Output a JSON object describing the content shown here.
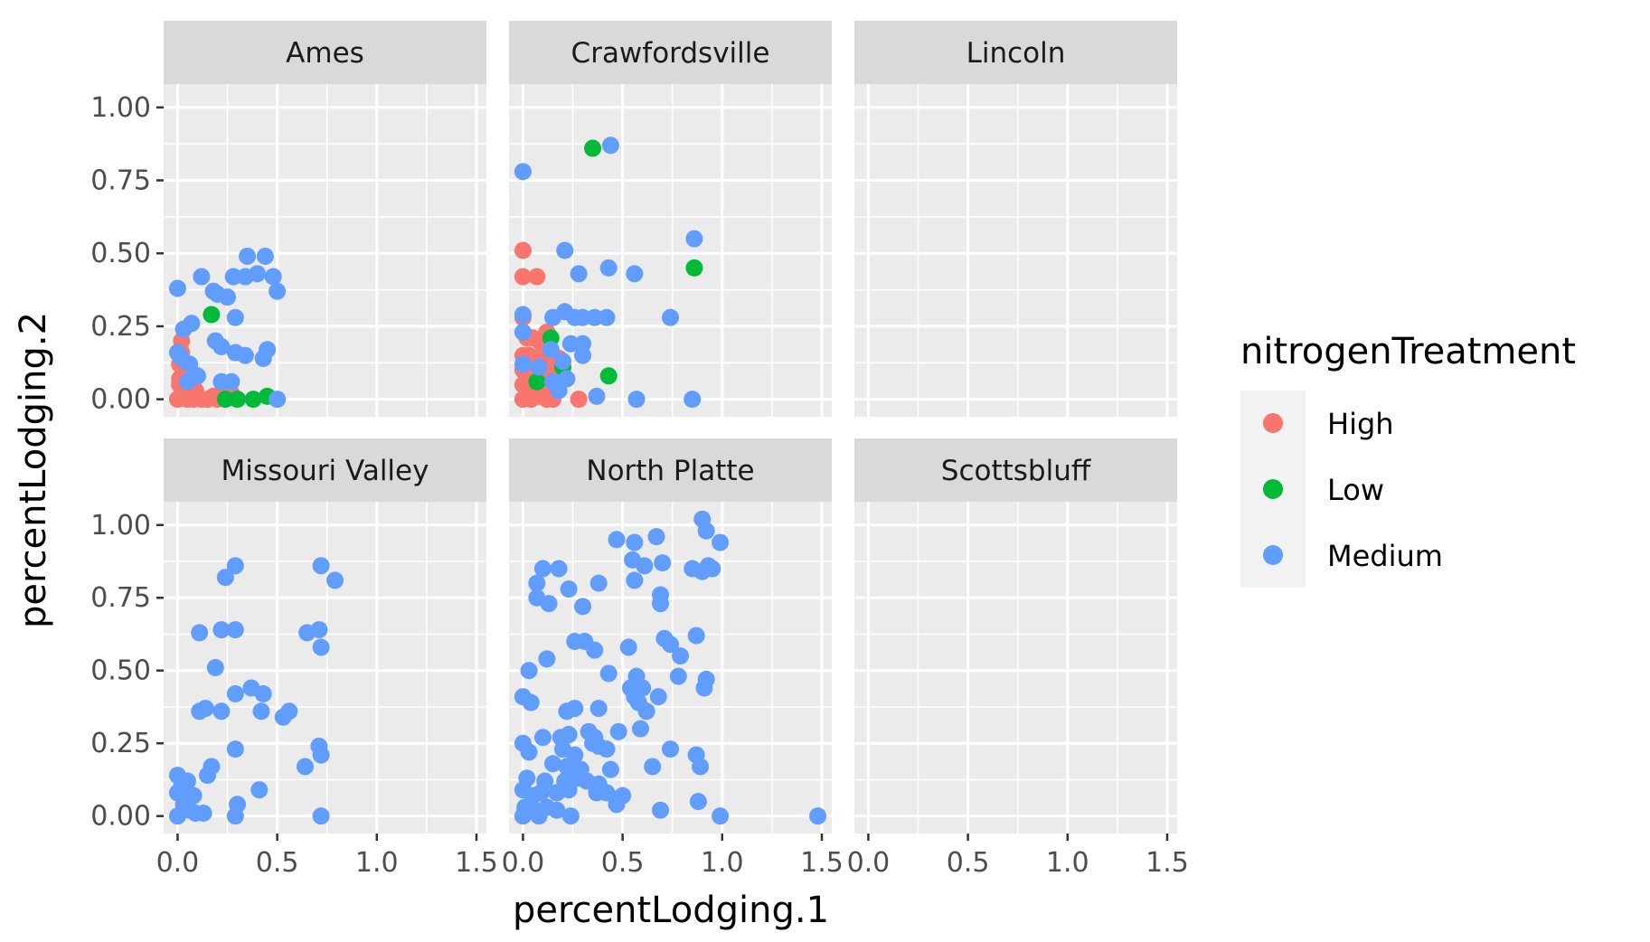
{
  "chart_data": {
    "type": "scatter",
    "xlabel": "percentLodging.1",
    "ylabel": "percentLodging.2",
    "xlim": [
      -0.07,
      1.55
    ],
    "ylim": [
      -0.06,
      1.08
    ],
    "x_ticks": [
      0.0,
      0.5,
      1.0,
      1.5
    ],
    "x_tick_labels": [
      "0.0",
      "0.5",
      "1.0",
      "1.5"
    ],
    "y_ticks": [
      0.0,
      0.25,
      0.5,
      0.75,
      1.0
    ],
    "y_tick_labels": [
      "0.00",
      "0.25",
      "0.50",
      "0.75",
      "1.00"
    ],
    "grid": true,
    "facets": [
      "Ames",
      "Crawfordsville",
      "Lincoln",
      "Missouri Valley",
      "North Platte",
      "Scottsbluff"
    ],
    "legend": {
      "title": "nitrogenTreatment",
      "position": "right",
      "entries": [
        {
          "label": "High",
          "color": "#F8766D"
        },
        {
          "label": "Low",
          "color": "#00BA38"
        },
        {
          "label": "Medium",
          "color": "#619CFF"
        }
      ]
    },
    "series": [
      {
        "name": "High",
        "color": "#F8766D",
        "points": {
          "Ames": [
            [
              0.02,
              0.2
            ],
            [
              0.02,
              0.16
            ],
            [
              0.01,
              0.12
            ],
            [
              0.03,
              0.1
            ],
            [
              0.02,
              0.08
            ],
            [
              0.04,
              0.06
            ],
            [
              0.01,
              0.05
            ],
            [
              0.02,
              0.04
            ],
            [
              0.03,
              0.03
            ],
            [
              0.05,
              0.02
            ],
            [
              0.02,
              0.01
            ],
            [
              0.0,
              0.0
            ],
            [
              0.05,
              0.0
            ],
            [
              0.08,
              0.0
            ],
            [
              0.1,
              0.01
            ],
            [
              0.12,
              0.0
            ],
            [
              0.15,
              0.0
            ],
            [
              0.18,
              0.01
            ],
            [
              0.2,
              0.0
            ],
            [
              0.24,
              0.01
            ],
            [
              0.27,
              0.02
            ],
            [
              0.03,
              0.13
            ],
            [
              0.06,
              0.09
            ],
            [
              0.07,
              0.04
            ],
            [
              0.01,
              0.07
            ],
            [
              0.09,
              0.03
            ],
            [
              0.04,
              0.11
            ]
          ],
          "Crawfordsville": [
            [
              0.0,
              0.51
            ],
            [
              0.0,
              0.42
            ],
            [
              0.07,
              0.42
            ],
            [
              0.0,
              0.28
            ],
            [
              0.02,
              0.21
            ],
            [
              0.05,
              0.21
            ],
            [
              0.08,
              0.2
            ],
            [
              0.12,
              0.23
            ],
            [
              0.0,
              0.15
            ],
            [
              0.03,
              0.15
            ],
            [
              0.06,
              0.14
            ],
            [
              0.09,
              0.15
            ],
            [
              0.12,
              0.14
            ],
            [
              0.15,
              0.15
            ],
            [
              0.18,
              0.14
            ],
            [
              0.0,
              0.1
            ],
            [
              0.04,
              0.1
            ],
            [
              0.07,
              0.09
            ],
            [
              0.11,
              0.1
            ],
            [
              0.14,
              0.09
            ],
            [
              0.0,
              0.05
            ],
            [
              0.03,
              0.04
            ],
            [
              0.06,
              0.05
            ],
            [
              0.1,
              0.04
            ],
            [
              0.13,
              0.03
            ],
            [
              0.16,
              0.04
            ],
            [
              0.0,
              0.0
            ],
            [
              0.04,
              0.0
            ],
            [
              0.08,
              0.01
            ],
            [
              0.12,
              0.0
            ],
            [
              0.15,
              0.0
            ],
            [
              0.28,
              0.0
            ],
            [
              0.02,
              0.07
            ],
            [
              0.05,
              0.02
            ],
            [
              0.09,
              0.07
            ]
          ]
        }
      },
      {
        "name": "Low",
        "color": "#00BA38",
        "points": {
          "Ames": [
            [
              0.17,
              0.29
            ],
            [
              0.3,
              0.0
            ],
            [
              0.38,
              0.0
            ],
            [
              0.45,
              0.01
            ],
            [
              0.24,
              0.0
            ]
          ],
          "Crawfordsville": [
            [
              0.35,
              0.86
            ],
            [
              0.86,
              0.45
            ],
            [
              0.43,
              0.08
            ],
            [
              0.07,
              0.06
            ],
            [
              0.2,
              0.11
            ],
            [
              0.14,
              0.21
            ]
          ]
        }
      },
      {
        "name": "Medium",
        "color": "#619CFF",
        "points": {
          "Ames": [
            [
              0.0,
              0.38
            ],
            [
              0.12,
              0.42
            ],
            [
              0.18,
              0.37
            ],
            [
              0.2,
              0.36
            ],
            [
              0.25,
              0.35
            ],
            [
              0.28,
              0.42
            ],
            [
              0.34,
              0.42
            ],
            [
              0.35,
              0.49
            ],
            [
              0.4,
              0.43
            ],
            [
              0.44,
              0.49
            ],
            [
              0.48,
              0.42
            ],
            [
              0.5,
              0.37
            ],
            [
              0.29,
              0.28
            ],
            [
              0.03,
              0.24
            ],
            [
              0.07,
              0.26
            ],
            [
              0.19,
              0.2
            ],
            [
              0.22,
              0.18
            ],
            [
              0.29,
              0.16
            ],
            [
              0.34,
              0.15
            ],
            [
              0.45,
              0.17
            ],
            [
              0.43,
              0.14
            ],
            [
              0.22,
              0.06
            ],
            [
              0.27,
              0.06
            ],
            [
              0.5,
              0.0
            ],
            [
              0.0,
              0.16
            ],
            [
              0.02,
              0.14
            ],
            [
              0.06,
              0.12
            ],
            [
              0.1,
              0.08
            ],
            [
              0.05,
              0.06
            ]
          ],
          "Crawfordsville": [
            [
              0.44,
              0.87
            ],
            [
              0.0,
              0.78
            ],
            [
              0.86,
              0.55
            ],
            [
              0.21,
              0.51
            ],
            [
              0.28,
              0.43
            ],
            [
              0.43,
              0.45
            ],
            [
              0.56,
              0.43
            ],
            [
              0.0,
              0.29
            ],
            [
              0.15,
              0.28
            ],
            [
              0.21,
              0.3
            ],
            [
              0.26,
              0.28
            ],
            [
              0.3,
              0.28
            ],
            [
              0.36,
              0.28
            ],
            [
              0.42,
              0.28
            ],
            [
              0.74,
              0.28
            ],
            [
              0.0,
              0.23
            ],
            [
              0.24,
              0.19
            ],
            [
              0.3,
              0.19
            ],
            [
              0.14,
              0.17
            ],
            [
              0.3,
              0.15
            ],
            [
              0.2,
              0.13
            ],
            [
              0.22,
              0.07
            ],
            [
              0.37,
              0.01
            ],
            [
              0.57,
              0.0
            ],
            [
              0.85,
              0.0
            ],
            [
              0.0,
              0.12
            ],
            [
              0.08,
              0.11
            ],
            [
              0.15,
              0.06
            ],
            [
              0.18,
              0.03
            ]
          ],
          "Lincoln": [],
          "Missouri Valley": [
            [
              0.29,
              0.86
            ],
            [
              0.24,
              0.82
            ],
            [
              0.72,
              0.86
            ],
            [
              0.79,
              0.81
            ],
            [
              0.11,
              0.63
            ],
            [
              0.22,
              0.64
            ],
            [
              0.29,
              0.64
            ],
            [
              0.65,
              0.63
            ],
            [
              0.71,
              0.64
            ],
            [
              0.72,
              0.58
            ],
            [
              0.19,
              0.51
            ],
            [
              0.29,
              0.42
            ],
            [
              0.37,
              0.44
            ],
            [
              0.43,
              0.42
            ],
            [
              0.11,
              0.36
            ],
            [
              0.14,
              0.37
            ],
            [
              0.22,
              0.36
            ],
            [
              0.42,
              0.36
            ],
            [
              0.53,
              0.34
            ],
            [
              0.56,
              0.36
            ],
            [
              0.29,
              0.23
            ],
            [
              0.71,
              0.24
            ],
            [
              0.72,
              0.21
            ],
            [
              0.64,
              0.17
            ],
            [
              0.17,
              0.17
            ],
            [
              0.15,
              0.14
            ],
            [
              0.3,
              0.04
            ],
            [
              0.41,
              0.09
            ],
            [
              0.29,
              0.0
            ],
            [
              0.72,
              0.0
            ],
            [
              0.0,
              0.14
            ],
            [
              0.05,
              0.12
            ],
            [
              0.0,
              0.08
            ],
            [
              0.08,
              0.07
            ],
            [
              0.03,
              0.04
            ],
            [
              0.06,
              0.02
            ],
            [
              0.0,
              0.0
            ],
            [
              0.09,
              0.01
            ],
            [
              0.13,
              0.01
            ],
            [
              0.02,
              0.1
            ]
          ],
          "North Platte": [
            [
              0.9,
              1.02
            ],
            [
              0.92,
              0.98
            ],
            [
              0.47,
              0.95
            ],
            [
              0.56,
              0.94
            ],
            [
              0.67,
              0.96
            ],
            [
              0.99,
              0.94
            ],
            [
              0.1,
              0.85
            ],
            [
              0.18,
              0.85
            ],
            [
              0.55,
              0.88
            ],
            [
              0.61,
              0.86
            ],
            [
              0.7,
              0.87
            ],
            [
              0.85,
              0.85
            ],
            [
              0.9,
              0.84
            ],
            [
              0.93,
              0.86
            ],
            [
              0.95,
              0.85
            ],
            [
              0.07,
              0.8
            ],
            [
              0.23,
              0.78
            ],
            [
              0.38,
              0.8
            ],
            [
              0.56,
              0.81
            ],
            [
              0.07,
              0.75
            ],
            [
              0.13,
              0.73
            ],
            [
              0.3,
              0.72
            ],
            [
              0.69,
              0.76
            ],
            [
              0.69,
              0.73
            ],
            [
              0.26,
              0.6
            ],
            [
              0.31,
              0.6
            ],
            [
              0.36,
              0.57
            ],
            [
              0.53,
              0.58
            ],
            [
              0.71,
              0.61
            ],
            [
              0.74,
              0.59
            ],
            [
              0.79,
              0.55
            ],
            [
              0.87,
              0.62
            ],
            [
              0.12,
              0.54
            ],
            [
              0.03,
              0.5
            ],
            [
              0.43,
              0.49
            ],
            [
              0.57,
              0.48
            ],
            [
              0.6,
              0.44
            ],
            [
              0.78,
              0.48
            ],
            [
              0.92,
              0.47
            ],
            [
              0.91,
              0.44
            ],
            [
              0.0,
              0.41
            ],
            [
              0.04,
              0.39
            ],
            [
              0.22,
              0.36
            ],
            [
              0.26,
              0.37
            ],
            [
              0.38,
              0.37
            ],
            [
              0.54,
              0.44
            ],
            [
              0.56,
              0.41
            ],
            [
              0.58,
              0.39
            ],
            [
              0.62,
              0.36
            ],
            [
              0.68,
              0.41
            ],
            [
              0.1,
              0.27
            ],
            [
              0.19,
              0.27
            ],
            [
              0.23,
              0.28
            ],
            [
              0.33,
              0.29
            ],
            [
              0.36,
              0.27
            ],
            [
              0.48,
              0.29
            ],
            [
              0.59,
              0.3
            ],
            [
              0.0,
              0.25
            ],
            [
              0.03,
              0.22
            ],
            [
              0.2,
              0.23
            ],
            [
              0.26,
              0.21
            ],
            [
              0.35,
              0.25
            ],
            [
              0.38,
              0.24
            ],
            [
              0.42,
              0.23
            ],
            [
              0.74,
              0.23
            ],
            [
              0.87,
              0.21
            ],
            [
              0.89,
              0.17
            ],
            [
              0.65,
              0.17
            ],
            [
              0.15,
              0.18
            ],
            [
              0.22,
              0.17
            ],
            [
              0.29,
              0.16
            ],
            [
              0.44,
              0.16
            ],
            [
              0.02,
              0.13
            ],
            [
              0.11,
              0.12
            ],
            [
              0.21,
              0.12
            ],
            [
              0.27,
              0.13
            ],
            [
              0.32,
              0.12
            ],
            [
              0.38,
              0.11
            ],
            [
              0.0,
              0.09
            ],
            [
              0.05,
              0.07
            ],
            [
              0.09,
              0.08
            ],
            [
              0.17,
              0.08
            ],
            [
              0.23,
              0.09
            ],
            [
              0.37,
              0.08
            ],
            [
              0.42,
              0.08
            ],
            [
              0.5,
              0.07
            ],
            [
              0.01,
              0.03
            ],
            [
              0.06,
              0.02
            ],
            [
              0.12,
              0.03
            ],
            [
              0.17,
              0.02
            ],
            [
              0.24,
              0.0
            ],
            [
              0.0,
              0.0
            ],
            [
              0.08,
              0.0
            ],
            [
              0.47,
              0.04
            ],
            [
              0.48,
              0.06
            ],
            [
              0.69,
              0.02
            ],
            [
              0.88,
              0.05
            ],
            [
              0.99,
              0.0
            ],
            [
              1.48,
              0.0
            ]
          ],
          "Scottsbluff": []
        }
      }
    ]
  }
}
